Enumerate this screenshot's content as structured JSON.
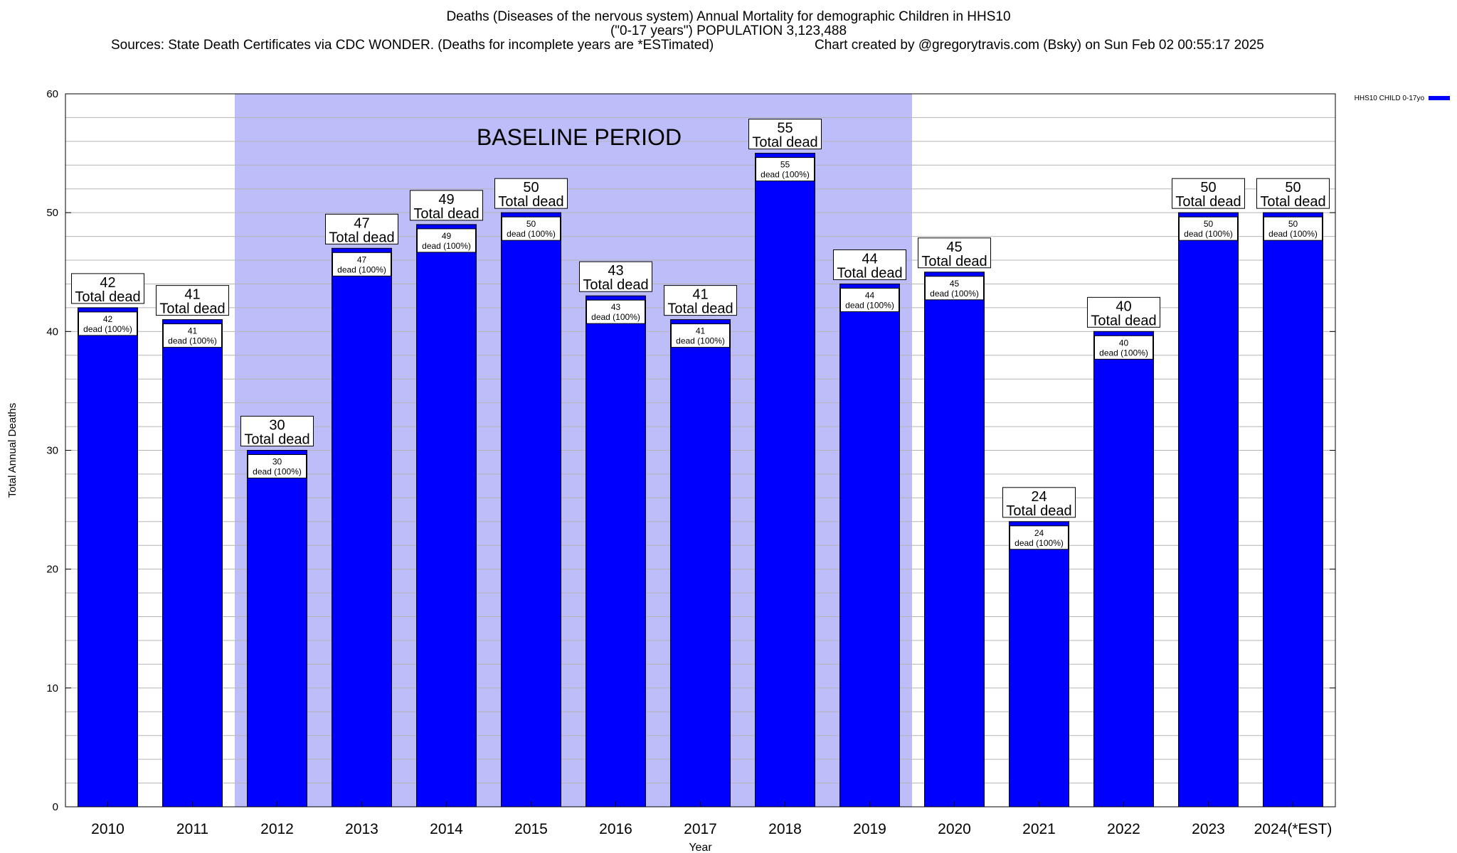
{
  "header": {
    "title_line1": "Deaths (Diseases of the nervous system) Annual Mortality for demographic Children in HHS10",
    "title_line2": "(\"0-17 years\") POPULATION 3,123,488",
    "sources": "Sources: State Death Certificates via CDC WONDER. (Deaths for incomplete years are *ESTimated)",
    "credit": "Chart created by @gregorytravis.com (Bsky) on Sun Feb 02 00:55:17 2025"
  },
  "chart_data": {
    "type": "bar",
    "title": "Deaths (Diseases of the nervous system) Annual Mortality for demographic Children in HHS10",
    "xlabel": "Year",
    "ylabel": "Total Annual Deaths",
    "ylim": [
      0,
      60
    ],
    "yticks": [
      0,
      10,
      20,
      30,
      40,
      50,
      60
    ],
    "grid": true,
    "categories": [
      "2010",
      "2011",
      "2012",
      "2013",
      "2014",
      "2015",
      "2016",
      "2017",
      "2018",
      "2019",
      "2020",
      "2021",
      "2022",
      "2023",
      "2024(*EST)"
    ],
    "series": [
      {
        "name": "HHS10 CHILD 0-17yo",
        "color": "#0000ff",
        "values": [
          42,
          41,
          30,
          47,
          49,
          50,
          43,
          41,
          55,
          44,
          45,
          24,
          40,
          50,
          50
        ]
      }
    ],
    "total_label_suffix": "Total dead",
    "inner_label_suffix": "dead (100%)",
    "baseline_period": {
      "label": "BASELINE PERIOD",
      "start": "2012",
      "end": "2019",
      "color": "#bdbdfa"
    },
    "legend_position": "top-right"
  }
}
